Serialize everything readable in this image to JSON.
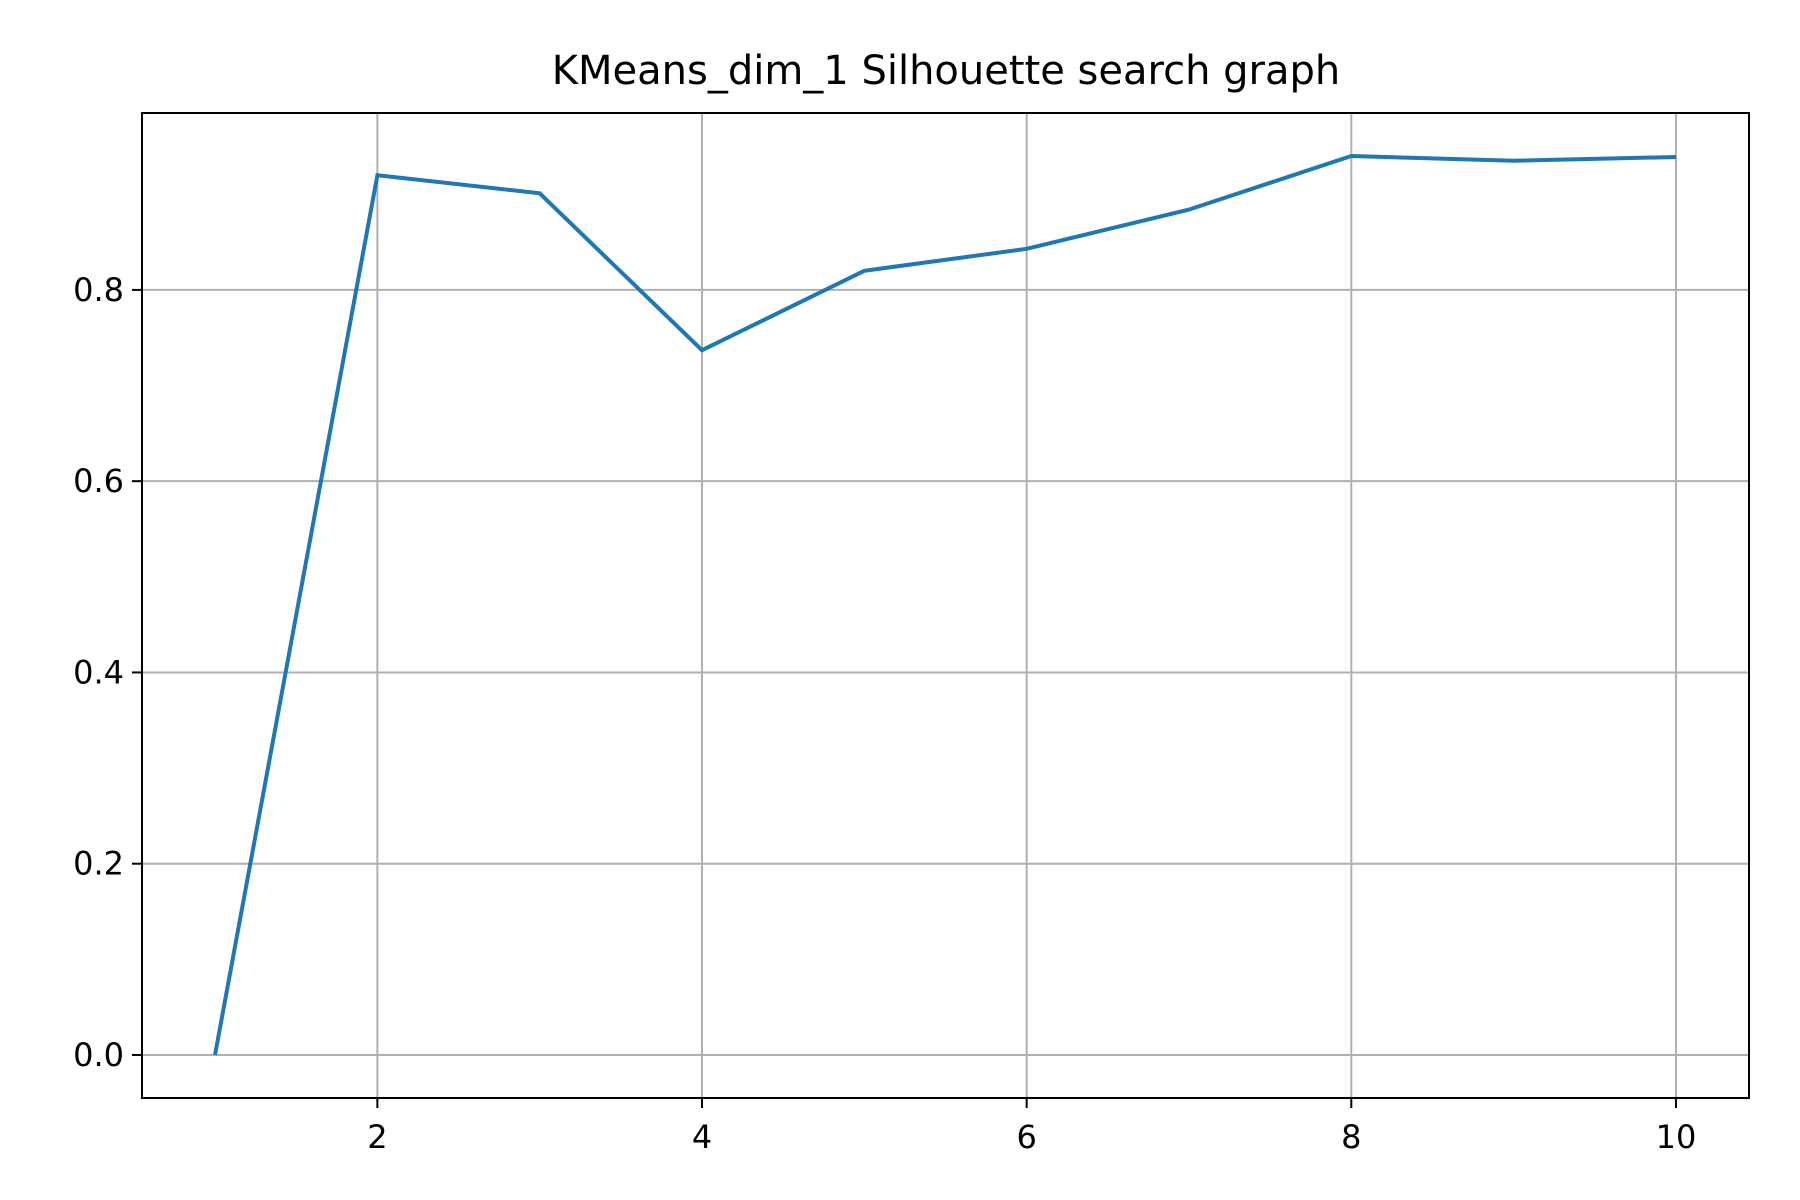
{
  "chart_data": {
    "type": "line",
    "title": "KMeans_dim_1 Silhouette search graph",
    "xlabel": "",
    "ylabel": "",
    "xlim": [
      0.55,
      10.45
    ],
    "ylim": [
      -0.045,
      0.985
    ],
    "x_ticks": [
      2,
      4,
      6,
      8,
      10
    ],
    "x_tick_labels": [
      "2",
      "4",
      "6",
      "8",
      "10"
    ],
    "y_ticks": [
      0.0,
      0.2,
      0.4,
      0.6,
      0.8
    ],
    "y_tick_labels": [
      "0.0",
      "0.2",
      "0.4",
      "0.6",
      "0.8"
    ],
    "grid": true,
    "legend": "none",
    "series": [
      {
        "color": "#1f77b4",
        "x": [
          1,
          2,
          3,
          4,
          5,
          6,
          7,
          8,
          9,
          10
        ],
        "y": [
          0.0,
          0.92,
          0.901,
          0.737,
          0.82,
          0.843,
          0.884,
          0.94,
          0.935,
          0.939
        ]
      }
    ]
  }
}
